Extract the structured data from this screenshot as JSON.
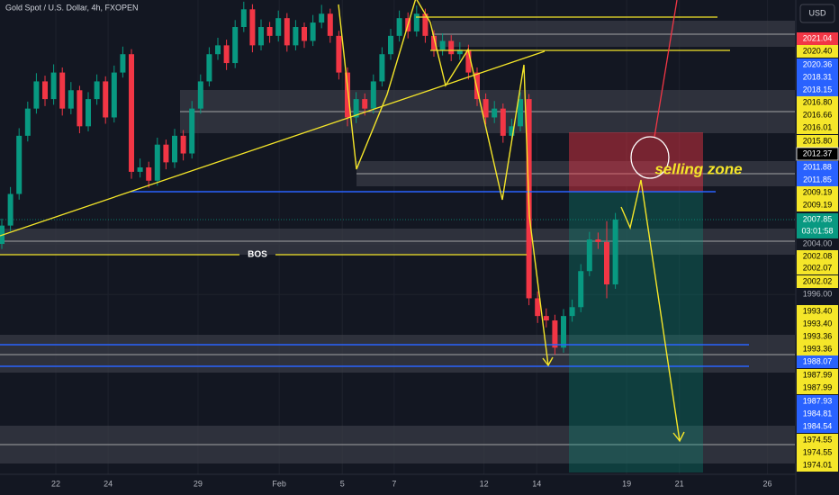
{
  "chart_data": {
    "type": "candlestick",
    "title": "Gold Spot / U.S. Dollar, 4h, FXOPEN",
    "currency": "USD",
    "annotations": [
      "BOS",
      "selling zone"
    ],
    "up_color": "#089981",
    "down_color": "#f23645",
    "grid": true,
    "ylim": [
      1967.57,
      2042.57
    ],
    "yticks": [
      {
        "value": 2004,
        "label": "2004.00"
      },
      {
        "value": 1996,
        "label": "1996.00"
      }
    ],
    "xlim": [
      -0.21,
      91.875
    ],
    "xticks": [
      {
        "value": 6.25,
        "label": "22"
      },
      {
        "value": 12.3,
        "label": "24"
      },
      {
        "value": 22.7,
        "label": "29"
      },
      {
        "value": 32.1,
        "label": "Feb"
      },
      {
        "value": 39.4,
        "label": "5"
      },
      {
        "value": 45.4,
        "label": "7"
      },
      {
        "value": 55.8,
        "label": "12"
      },
      {
        "value": 61.9,
        "label": "14"
      },
      {
        "value": 72.3,
        "label": "19"
      },
      {
        "value": 78.4,
        "label": "21"
      },
      {
        "value": 88.6,
        "label": "26"
      }
    ],
    "current_price": {
      "label": "2007.85",
      "countdown": "03:01:58",
      "color": "#089981"
    },
    "price_labels": [
      {
        "label": "2021.04",
        "color": "#f23645"
      },
      {
        "label": "2020.40",
        "color": "#f5e629"
      },
      {
        "label": "2020.36",
        "color": "#2962ff"
      },
      {
        "label": "2018.31",
        "color": "#2962ff"
      },
      {
        "label": "2018.15",
        "color": "#2962ff"
      },
      {
        "label": "2016.80",
        "color": "#f5e629"
      },
      {
        "label": "2016.66",
        "color": "#f5e629"
      },
      {
        "label": "2016.01",
        "color": "#f5e629"
      },
      {
        "label": "2015.80",
        "color": "#f5e629"
      },
      {
        "label": "2012.37",
        "color": "#000000"
      },
      {
        "label": "2011.88",
        "color": "#2962ff"
      },
      {
        "label": "2011.85",
        "color": "#2962ff"
      },
      {
        "label": "2009.19",
        "color": "#f5e629"
      },
      {
        "label": "2009.19",
        "color": "#f5e629"
      },
      {
        "label": "2002.08",
        "color": "#f5e629"
      },
      {
        "label": "2002.07",
        "color": "#f5e629"
      },
      {
        "label": "2002.02",
        "color": "#f5e629"
      },
      {
        "label": "1993.40",
        "color": "#f5e629"
      },
      {
        "label": "1993.40",
        "color": "#f5e629"
      },
      {
        "label": "1993.36",
        "color": "#f5e629"
      },
      {
        "label": "1993.36",
        "color": "#f5e629"
      },
      {
        "label": "1988.07",
        "color": "#2962ff"
      },
      {
        "label": "1987.99",
        "color": "#f5e629"
      },
      {
        "label": "1987.99",
        "color": "#f5e629"
      },
      {
        "label": "1987.93",
        "color": "#2962ff"
      },
      {
        "label": "1984.81",
        "color": "#2962ff"
      },
      {
        "label": "1984.54",
        "color": "#2962ff"
      },
      {
        "label": "1974.55",
        "color": "#f5e629"
      },
      {
        "label": "1974.55",
        "color": "#f5e629"
      },
      {
        "label": "1974.01",
        "color": "#f5e629"
      }
    ],
    "candles": [
      {
        "open": 2004.0,
        "high": 2008.0,
        "low": 2003.2,
        "close": 2006.9
      },
      {
        "open": 2006.9,
        "high": 2013.0,
        "low": 2006.0,
        "close": 2011.9
      },
      {
        "open": 2011.9,
        "high": 2022.3,
        "low": 2011.0,
        "close": 2021.1
      },
      {
        "open": 2021.1,
        "high": 2026.5,
        "low": 2020.2,
        "close": 2025.4
      },
      {
        "open": 2025.4,
        "high": 2031.0,
        "low": 2024.6,
        "close": 2029.7
      },
      {
        "open": 2029.7,
        "high": 2030.6,
        "low": 2025.8,
        "close": 2026.9
      },
      {
        "open": 2026.9,
        "high": 2032.4,
        "low": 2026.0,
        "close": 2031.1
      },
      {
        "open": 2031.1,
        "high": 2031.9,
        "low": 2024.3,
        "close": 2025.4
      },
      {
        "open": 2025.4,
        "high": 2029.6,
        "low": 2024.5,
        "close": 2028.3
      },
      {
        "open": 2028.3,
        "high": 2029.0,
        "low": 2021.5,
        "close": 2022.6
      },
      {
        "open": 2022.6,
        "high": 2028.0,
        "low": 2021.8,
        "close": 2026.9
      },
      {
        "open": 2026.9,
        "high": 2030.8,
        "low": 2026.0,
        "close": 2029.7
      },
      {
        "open": 2029.7,
        "high": 2030.5,
        "low": 2023.0,
        "close": 2024.0
      },
      {
        "open": 2024.0,
        "high": 2032.2,
        "low": 2023.2,
        "close": 2031.1
      },
      {
        "open": 2031.1,
        "high": 2035.2,
        "low": 2030.3,
        "close": 2034.0
      },
      {
        "open": 2034.0,
        "high": 2034.8,
        "low": 2014.3,
        "close": 2015.4
      },
      {
        "open": 2015.4,
        "high": 2017.5,
        "low": 2014.5,
        "close": 2016.1
      },
      {
        "open": 2016.1,
        "high": 2017.0,
        "low": 2012.9,
        "close": 2014.0
      },
      {
        "open": 2014.0,
        "high": 2020.8,
        "low": 2013.2,
        "close": 2019.7
      },
      {
        "open": 2019.7,
        "high": 2020.5,
        "low": 2015.8,
        "close": 2016.9
      },
      {
        "open": 2016.9,
        "high": 2022.2,
        "low": 2016.0,
        "close": 2021.1
      },
      {
        "open": 2021.1,
        "high": 2022.0,
        "low": 2017.2,
        "close": 2018.3
      },
      {
        "open": 2018.3,
        "high": 2026.6,
        "low": 2017.5,
        "close": 2025.4
      },
      {
        "open": 2025.4,
        "high": 2030.8,
        "low": 2024.6,
        "close": 2029.7
      },
      {
        "open": 2029.7,
        "high": 2035.1,
        "low": 2028.9,
        "close": 2034.0
      },
      {
        "open": 2034.0,
        "high": 2036.6,
        "low": 2033.1,
        "close": 2035.4
      },
      {
        "open": 2035.4,
        "high": 2036.3,
        "low": 2031.5,
        "close": 2032.6
      },
      {
        "open": 2032.6,
        "high": 2039.4,
        "low": 2031.8,
        "close": 2038.3
      },
      {
        "open": 2038.3,
        "high": 2042.3,
        "low": 2037.5,
        "close": 2041.1
      },
      {
        "open": 2041.1,
        "high": 2041.9,
        "low": 2034.3,
        "close": 2035.4
      },
      {
        "open": 2035.4,
        "high": 2039.5,
        "low": 2034.6,
        "close": 2038.3
      },
      {
        "open": 2038.3,
        "high": 2039.1,
        "low": 2035.8,
        "close": 2036.9
      },
      {
        "open": 2036.9,
        "high": 2040.9,
        "low": 2036.0,
        "close": 2039.7
      },
      {
        "open": 2039.7,
        "high": 2040.5,
        "low": 2034.4,
        "close": 2035.4
      },
      {
        "open": 2035.4,
        "high": 2039.4,
        "low": 2034.6,
        "close": 2038.3
      },
      {
        "open": 2038.3,
        "high": 2039.0,
        "low": 2035.0,
        "close": 2036.1
      },
      {
        "open": 2036.1,
        "high": 2040.2,
        "low": 2035.3,
        "close": 2039.0
      },
      {
        "open": 2039.0,
        "high": 2041.8,
        "low": 2038.1,
        "close": 2040.4
      },
      {
        "open": 2040.4,
        "high": 2041.2,
        "low": 2035.8,
        "close": 2036.9
      },
      {
        "open": 2036.9,
        "high": 2037.7,
        "low": 2030.0,
        "close": 2031.1
      },
      {
        "open": 2031.1,
        "high": 2031.9,
        "low": 2022.6,
        "close": 2024.0
      },
      {
        "open": 2024.0,
        "high": 2028.0,
        "low": 2023.1,
        "close": 2026.9
      },
      {
        "open": 2026.9,
        "high": 2027.8,
        "low": 2024.3,
        "close": 2025.4
      },
      {
        "open": 2025.4,
        "high": 2030.8,
        "low": 2024.6,
        "close": 2029.7
      },
      {
        "open": 2029.7,
        "high": 2035.1,
        "low": 2028.9,
        "close": 2034.0
      },
      {
        "open": 2034.0,
        "high": 2038.0,
        "low": 2033.1,
        "close": 2036.9
      },
      {
        "open": 2036.9,
        "high": 2040.9,
        "low": 2036.0,
        "close": 2039.7
      },
      {
        "open": 2039.7,
        "high": 2040.6,
        "low": 2036.5,
        "close": 2037.6
      },
      {
        "open": 2037.6,
        "high": 2041.7,
        "low": 2036.8,
        "close": 2040.4
      },
      {
        "open": 2040.4,
        "high": 2041.2,
        "low": 2035.8,
        "close": 2036.9
      },
      {
        "open": 2036.9,
        "high": 2037.8,
        "low": 2033.6,
        "close": 2034.7
      },
      {
        "open": 2034.7,
        "high": 2037.3,
        "low": 2033.8,
        "close": 2036.1
      },
      {
        "open": 2036.1,
        "high": 2037.0,
        "low": 2032.9,
        "close": 2034.0
      },
      {
        "open": 2034.0,
        "high": 2035.9,
        "low": 2033.1,
        "close": 2034.7
      },
      {
        "open": 2034.7,
        "high": 2035.5,
        "low": 2030.0,
        "close": 2031.1
      },
      {
        "open": 2031.1,
        "high": 2031.9,
        "low": 2025.8,
        "close": 2026.9
      },
      {
        "open": 2026.9,
        "high": 2027.8,
        "low": 2022.9,
        "close": 2024.0
      },
      {
        "open": 2024.0,
        "high": 2026.6,
        "low": 2023.1,
        "close": 2025.4
      },
      {
        "open": 2025.4,
        "high": 2026.2,
        "low": 2020.0,
        "close": 2021.1
      },
      {
        "open": 2021.1,
        "high": 2023.8,
        "low": 2020.2,
        "close": 2022.6
      },
      {
        "open": 2022.6,
        "high": 2028.0,
        "low": 2021.8,
        "close": 2026.9
      },
      {
        "open": 2026.9,
        "high": 2027.7,
        "low": 1994.3,
        "close": 1995.4
      },
      {
        "open": 1995.4,
        "high": 1996.5,
        "low": 1991.5,
        "close": 1992.6
      },
      {
        "open": 1992.6,
        "high": 1993.8,
        "low": 1990.8,
        "close": 1991.9
      },
      {
        "open": 1991.9,
        "high": 1992.8,
        "low": 1986.5,
        "close": 1987.6
      },
      {
        "open": 1987.6,
        "high": 1993.7,
        "low": 1986.8,
        "close": 1992.6
      },
      {
        "open": 1992.6,
        "high": 1995.2,
        "low": 1991.7,
        "close": 1994.0
      },
      {
        "open": 1994.0,
        "high": 2000.8,
        "low": 1993.2,
        "close": 1999.7
      },
      {
        "open": 1999.7,
        "high": 2005.9,
        "low": 1998.9,
        "close": 2004.7
      },
      {
        "open": 2004.7,
        "high": 2005.8,
        "low": 2003.2,
        "close": 2004.3
      },
      {
        "open": 2004.3,
        "high": 2007.6,
        "low": 1995.4,
        "close": 1997.6
      },
      {
        "open": 1997.6,
        "high": 2008.9,
        "low": 1996.9,
        "close": 2007.85
      }
    ]
  }
}
